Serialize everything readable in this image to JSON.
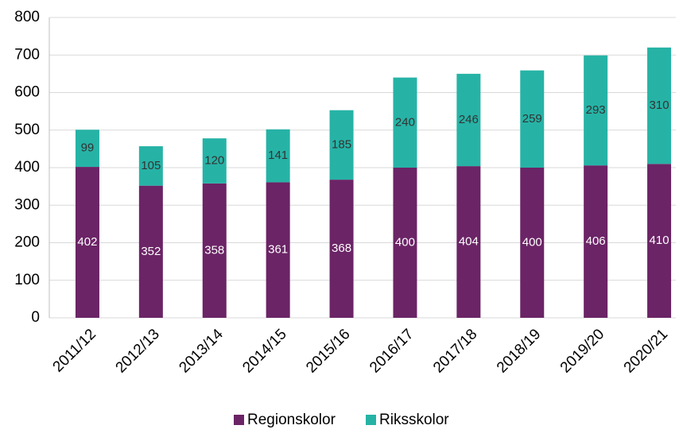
{
  "chart_data": {
    "type": "stacked_bar",
    "categories": [
      "2011/12",
      "2012/13",
      "2013/14",
      "2014/15",
      "2015/16",
      "2016/17",
      "2017/18",
      "2018/19",
      "2019/20",
      "2020/21"
    ],
    "series": [
      {
        "name": "Regionskolor",
        "color": "#6b2466",
        "values": [
          402,
          352,
          358,
          361,
          368,
          400,
          404,
          400,
          406,
          410
        ]
      },
      {
        "name": "Riksskolor",
        "color": "#26b3a6",
        "values": [
          99,
          105,
          120,
          141,
          185,
          240,
          246,
          259,
          293,
          310
        ]
      }
    ],
    "ylim": [
      0,
      800
    ],
    "yticks": [
      0,
      100,
      200,
      300,
      400,
      500,
      600,
      700,
      800
    ],
    "grid": true,
    "legend": "bottom"
  }
}
